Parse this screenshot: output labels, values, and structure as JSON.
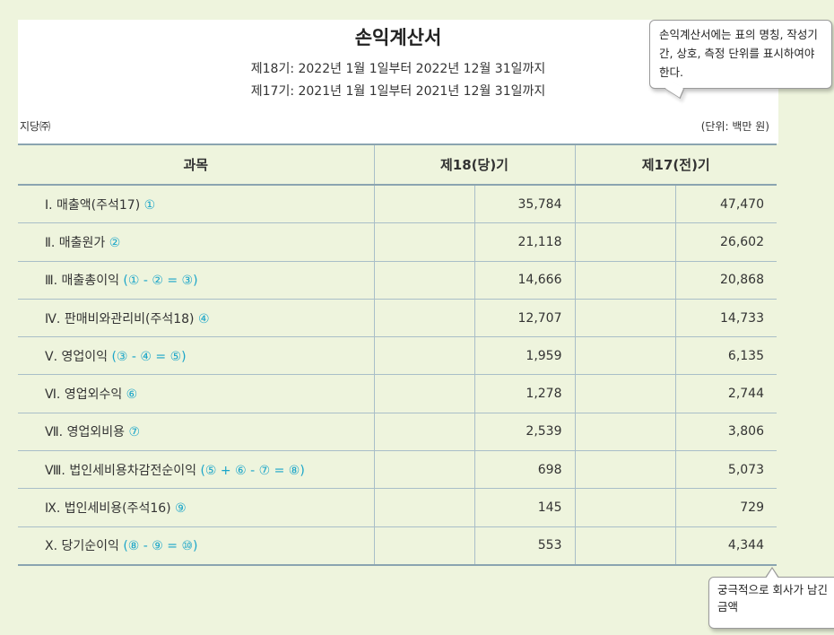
{
  "title": "손익계산서",
  "period_18": "제18기: 2022년 1월 1일부터 2022년 12월 31일까지",
  "period_17": "제17기: 2021년 1월 1일부터 2021년 12월 31일까지",
  "company": "지당㈜",
  "unit": "(단위: 백만 원)",
  "callout_top": "손익계산서에는 표의 명칭, 작성기간, 상호, 측정 단위를 표시하여야 한다.",
  "callout_bottom": "궁극적으로 회사가 남긴 금액",
  "headers": {
    "item": "과목",
    "col18": "제18(당)기",
    "col17": "제17(전)기"
  },
  "rows": [
    {
      "label": "Ⅰ. 매출액(주석17) ",
      "formula": "①",
      "v18": "35,784",
      "v17": "47,470"
    },
    {
      "label": "Ⅱ. 매출원가 ",
      "formula": "②",
      "v18": "21,118",
      "v17": "26,602"
    },
    {
      "label": "Ⅲ. 매출총이익 ",
      "formula": "(① - ② = ③)",
      "v18": "14,666",
      "v17": "20,868"
    },
    {
      "label": "Ⅳ. 판매비와관리비(주석18) ",
      "formula": "④",
      "v18": "12,707",
      "v17": "14,733"
    },
    {
      "label": "Ⅴ. 영업이익 ",
      "formula": "(③ - ④ = ⑤)",
      "v18": "1,959",
      "v17": "6,135"
    },
    {
      "label": "Ⅵ. 영업외수익 ",
      "formula": "⑥",
      "v18": "1,278",
      "v17": "2,744"
    },
    {
      "label": "Ⅶ. 영업외비용 ",
      "formula": "⑦",
      "v18": "2,539",
      "v17": "3,806"
    },
    {
      "label": "Ⅷ. 법인세비용차감전순이익 ",
      "formula": "(⑤ + ⑥ - ⑦ = ⑧)",
      "v18": "698",
      "v17": "5,073"
    },
    {
      "label": "Ⅸ. 법인세비용(주석16) ",
      "formula": "⑨",
      "v18": "145",
      "v17": "729"
    },
    {
      "label": "Ⅹ. 당기순이익 ",
      "formula": "(⑧ - ⑨ = ⑩)",
      "v18": "553",
      "v17": "4,344"
    }
  ],
  "colors": {
    "background": "#eef4dd",
    "formula": "#1aa5c9",
    "rule": "#a9bec8"
  }
}
